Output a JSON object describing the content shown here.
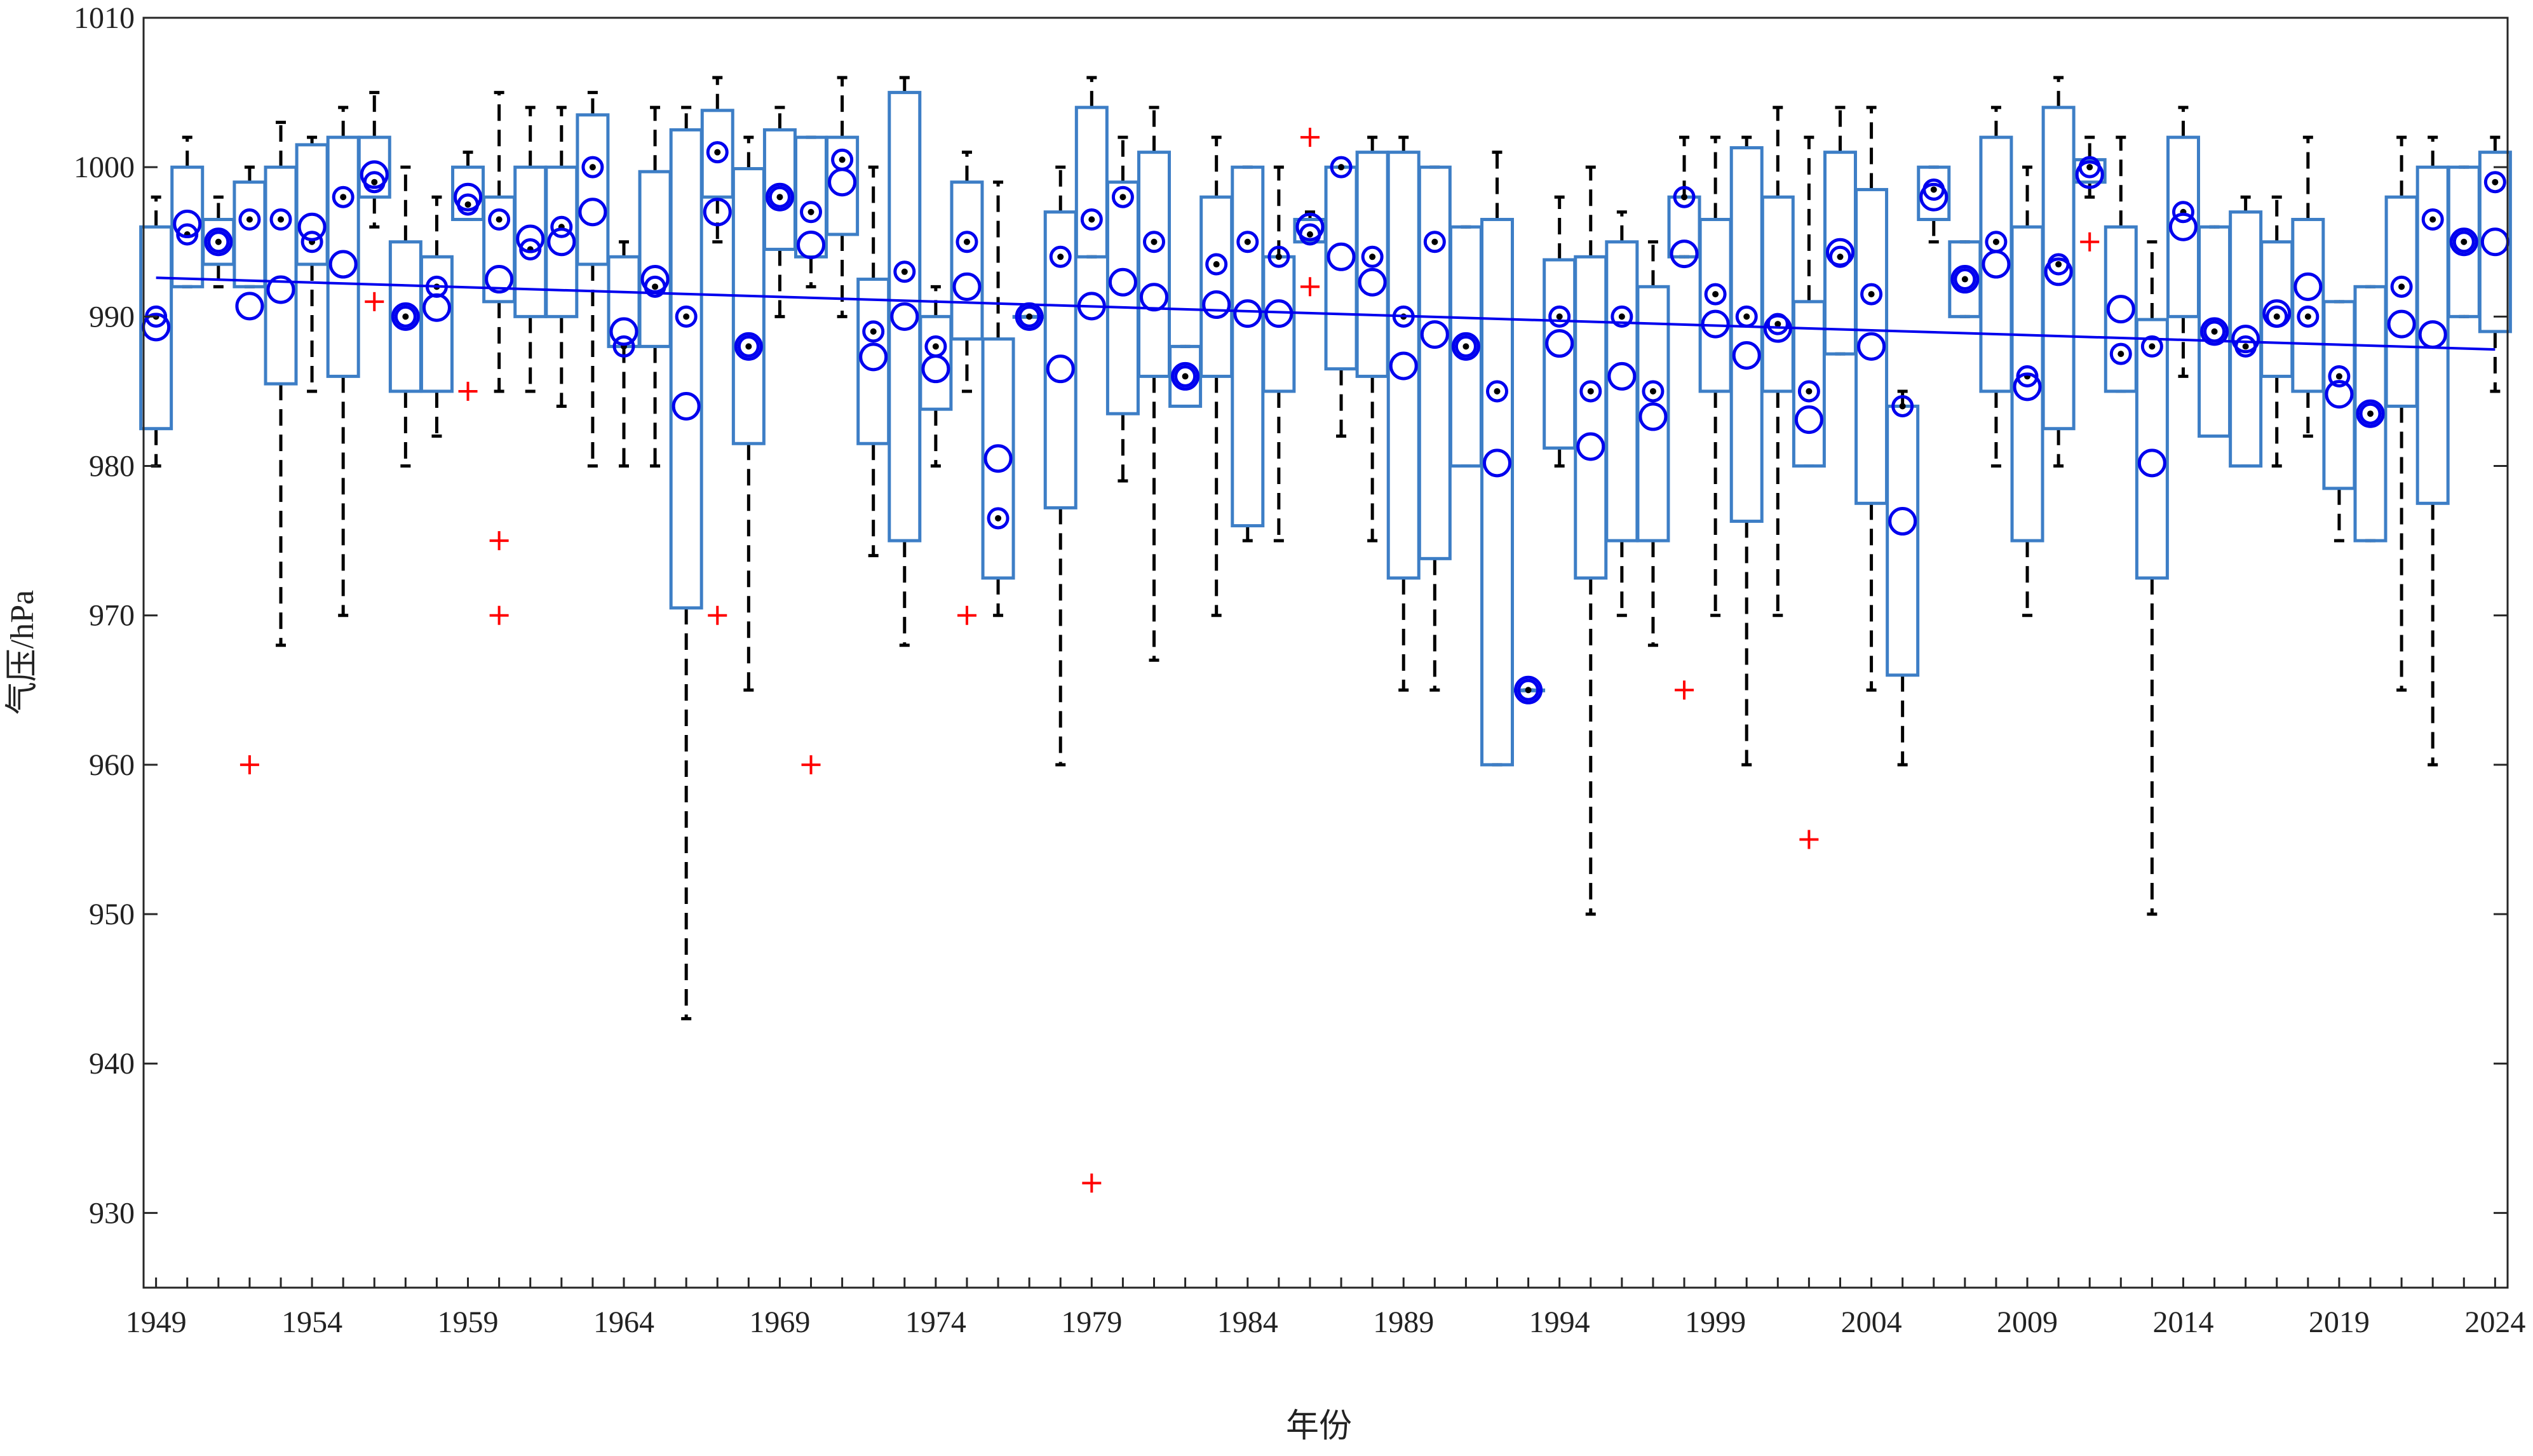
{
  "chart_data": {
    "type": "boxplot",
    "title": "",
    "xlabel": "年份",
    "ylabel": "气压/hPa",
    "xlim": [
      1948.6,
      2024.4
    ],
    "ylim": [
      925,
      1010
    ],
    "yticks": [
      930,
      940,
      950,
      960,
      970,
      980,
      990,
      1000,
      1010
    ],
    "xticks": [
      1949,
      1954,
      1959,
      1964,
      1969,
      1974,
      1979,
      1984,
      1989,
      1994,
      1999,
      2004,
      2009,
      2014,
      2019,
      2024
    ],
    "grid": false,
    "legend": "none",
    "colors": {
      "box": "#3d7ec6",
      "whisker": "#000000",
      "marker": "#0000ee",
      "outlier": "#ff0000",
      "trend": "#0000ee"
    },
    "trend": {
      "start": [
        1949,
        992.6
      ],
      "end": [
        2024,
        987.8
      ]
    },
    "fields": [
      "year",
      "whisker_low",
      "q1",
      "median",
      "q3",
      "whisker_high",
      "mean",
      "outliers"
    ],
    "boxes": [
      [
        1949,
        980,
        982.5,
        990,
        996,
        998,
        989.3,
        []
      ],
      [
        1950,
        992,
        992,
        995.5,
        1000,
        1002,
        996.2,
        []
      ],
      [
        1951,
        992,
        993.5,
        995,
        996.5,
        998,
        995,
        []
      ],
      [
        1952,
        992,
        992,
        996.5,
        999,
        1000,
        990.7,
        [
          960
        ]
      ],
      [
        1953,
        968,
        985.5,
        996.5,
        1000,
        1003,
        991.8,
        []
      ],
      [
        1954,
        985,
        993.5,
        995,
        1001.5,
        1002,
        996,
        []
      ],
      [
        1955,
        970,
        986,
        998,
        1002,
        1004,
        993.5,
        []
      ],
      [
        1956,
        996,
        998,
        999,
        1002,
        1005,
        999.5,
        [
          991
        ]
      ],
      [
        1957,
        980,
        985,
        990,
        995,
        1000,
        990,
        []
      ],
      [
        1958,
        982,
        985,
        992,
        994,
        998,
        990.6,
        []
      ],
      [
        1959,
        996.5,
        996.5,
        997.5,
        1000,
        1001,
        998,
        [
          985
        ]
      ],
      [
        1960,
        985,
        991,
        996.5,
        998,
        1005,
        992.5,
        [
          975,
          970
        ]
      ],
      [
        1961,
        985,
        990,
        994.5,
        1000,
        1004,
        995.2,
        []
      ],
      [
        1962,
        984,
        990,
        996,
        1000,
        1004,
        995,
        []
      ],
      [
        1963,
        980,
        993.5,
        1000,
        1003.5,
        1005,
        997,
        []
      ],
      [
        1964,
        980,
        988,
        988,
        994,
        995,
        989,
        []
      ],
      [
        1965,
        980,
        988,
        992,
        999.7,
        1004,
        992.5,
        []
      ],
      [
        1966,
        943,
        970.5,
        990,
        1002.5,
        1004,
        984,
        []
      ],
      [
        1967,
        995,
        998,
        1001,
        1003.8,
        1006,
        997,
        [
          970
        ]
      ],
      [
        1968,
        965,
        981.5,
        988,
        999.9,
        1002,
        988,
        []
      ],
      [
        1969,
        990,
        994.5,
        998,
        1002.5,
        1004,
        998,
        []
      ],
      [
        1970,
        992,
        994,
        997,
        1002,
        1002,
        994.8,
        [
          960
        ]
      ],
      [
        1971,
        990,
        995.5,
        1000.5,
        1002,
        1006,
        999,
        []
      ],
      [
        1972,
        974,
        981.5,
        989,
        992.5,
        1000,
        987.3,
        []
      ],
      [
        1973,
        968,
        975,
        993,
        1005,
        1006,
        990,
        []
      ],
      [
        1974,
        980,
        983.8,
        988,
        990,
        992,
        986.5,
        []
      ],
      [
        1975,
        985,
        988.5,
        995,
        999,
        1001,
        992,
        [
          970
        ]
      ],
      [
        1976,
        970,
        972.5,
        976.5,
        988.5,
        999,
        980.5,
        []
      ],
      [
        1977,
        990,
        990,
        990,
        990,
        990,
        990,
        []
      ],
      [
        1978,
        960,
        977.2,
        994,
        997,
        1000,
        986.5,
        []
      ],
      [
        1979,
        994,
        994,
        996.5,
        1004,
        1006,
        990.7,
        [
          932
        ]
      ],
      [
        1980,
        979,
        983.5,
        998,
        999,
        1002,
        992.3,
        []
      ],
      [
        1981,
        967,
        986,
        995,
        1001,
        1004,
        991.3,
        []
      ],
      [
        1982,
        984,
        984,
        986,
        988,
        988,
        986,
        []
      ],
      [
        1983,
        970,
        986,
        993.5,
        998,
        1002,
        990.8,
        []
      ],
      [
        1984,
        975,
        976,
        995,
        1000,
        1000,
        990.2,
        []
      ],
      [
        1985,
        975,
        985,
        994,
        994,
        1000,
        990.2,
        []
      ],
      [
        1986,
        995,
        995,
        995.5,
        996.5,
        997,
        996,
        [
          1002,
          992
        ]
      ],
      [
        1987,
        982,
        986.5,
        1000,
        1000,
        1000,
        994,
        []
      ],
      [
        1988,
        975,
        986,
        994,
        1001,
        1002,
        992.3,
        []
      ],
      [
        1989,
        965,
        972.5,
        990,
        1001,
        1002,
        986.7,
        []
      ],
      [
        1990,
        965,
        973.8,
        995,
        1000,
        1000,
        988.8,
        []
      ],
      [
        1991,
        980,
        980,
        988,
        996,
        996,
        988,
        []
      ],
      [
        1992,
        960,
        960,
        985,
        996.5,
        1001,
        980.2,
        []
      ],
      [
        1993,
        965,
        965,
        965,
        965,
        965,
        965,
        []
      ],
      [
        1994,
        980,
        981.2,
        990,
        993.8,
        998,
        988.2,
        []
      ],
      [
        1995,
        950,
        972.5,
        985,
        994,
        1000,
        981.3,
        []
      ],
      [
        1996,
        970,
        975,
        990,
        995,
        997,
        986,
        []
      ],
      [
        1997,
        968,
        975,
        985,
        992,
        995,
        983.3,
        []
      ],
      [
        1998,
        994,
        994,
        998,
        998,
        1002,
        994.2,
        [
          965
        ]
      ],
      [
        1999,
        970,
        985,
        991.5,
        996.5,
        1002,
        989.5,
        []
      ],
      [
        2000,
        960,
        976.3,
        990,
        1001.3,
        1002,
        987.4,
        []
      ],
      [
        2001,
        970,
        985,
        989.5,
        998,
        1004,
        989.2,
        []
      ],
      [
        2002,
        980,
        980,
        985,
        991,
        1002,
        983.1,
        [
          955
        ]
      ],
      [
        2003,
        987.5,
        987.5,
        994,
        1001,
        1004,
        994.3,
        []
      ],
      [
        2004,
        965,
        977.5,
        991.5,
        998.5,
        1004,
        988,
        []
      ],
      [
        2005,
        960,
        966,
        984,
        984,
        985,
        976.3,
        []
      ],
      [
        2006,
        995,
        996.5,
        998.5,
        1000,
        1000,
        998,
        []
      ],
      [
        2007,
        990,
        990,
        992.5,
        995,
        995,
        992.5,
        []
      ],
      [
        2008,
        980,
        985,
        995,
        1002,
        1004,
        993.5,
        []
      ],
      [
        2009,
        970,
        975,
        986,
        996,
        1000,
        985.3,
        []
      ],
      [
        2010,
        980,
        982.5,
        993.5,
        1004,
        1006,
        993,
        []
      ],
      [
        2011,
        998,
        999,
        1000,
        1000.5,
        1002,
        999.5,
        [
          995
        ]
      ],
      [
        2012,
        985,
        985,
        987.5,
        996,
        1002,
        990.5,
        []
      ],
      [
        2013,
        950,
        972.5,
        988,
        989.8,
        995,
        980.2,
        []
      ],
      [
        2014,
        986,
        990,
        997,
        1002,
        1004,
        996,
        []
      ],
      [
        2015,
        982,
        982,
        989,
        996,
        996,
        989,
        []
      ],
      [
        2016,
        980,
        980,
        988,
        997,
        998,
        988.5,
        []
      ],
      [
        2017,
        980,
        986,
        990,
        995,
        998,
        990.2,
        []
      ],
      [
        2018,
        982,
        985,
        990,
        996.5,
        1002,
        992,
        []
      ],
      [
        2019,
        975,
        978.5,
        986,
        991,
        991,
        984.8,
        []
      ],
      [
        2020,
        975,
        975,
        983.5,
        992,
        992,
        983.5,
        []
      ],
      [
        2021,
        965,
        984,
        992,
        998,
        1002,
        989.5,
        []
      ],
      [
        2022,
        960,
        977.5,
        996.5,
        1000,
        1002,
        988.8,
        []
      ],
      [
        2023,
        990,
        990,
        995,
        1000,
        1000,
        995,
        []
      ],
      [
        2024,
        985,
        989,
        999,
        1001,
        1002,
        995,
        []
      ]
    ]
  }
}
